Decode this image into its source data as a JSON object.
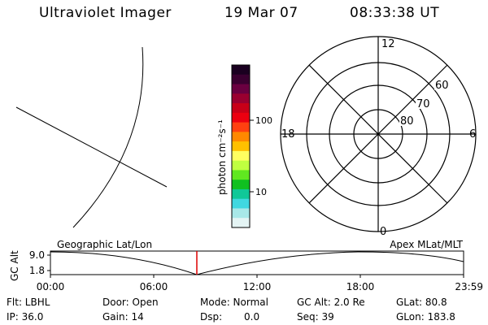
{
  "header": {
    "instrument": "Ultraviolet Imager",
    "date": "19 Mar 07",
    "time": "08:33:38 UT"
  },
  "colorbar": {
    "unit_label": "photon cm⁻²s⁻¹",
    "ticks": [
      "100",
      "10"
    ],
    "colors": [
      "#1a0020",
      "#3a0030",
      "#6a0040",
      "#9a0030",
      "#c80018",
      "#ec0010",
      "#ff4010",
      "#ff8800",
      "#ffc000",
      "#ffff60",
      "#c0ff40",
      "#60e820",
      "#10c020",
      "#10c898",
      "#40d8e0",
      "#a8e8e8",
      "#e4f4f4"
    ]
  },
  "polar_plot": {
    "mlt_labels": [
      "12",
      "18",
      "6",
      "0"
    ],
    "mlat_labels": [
      "60",
      "70",
      "80"
    ]
  },
  "timeline": {
    "y_axis_label": "GC Alt",
    "y_ticks": [
      "9.0",
      "1.8"
    ],
    "left_caption": "Geographic Lat/Lon",
    "right_caption": "Apex MLat/MLT",
    "time_ticks": [
      "00:00",
      "06:00",
      "12:00",
      "18:00",
      "23:59"
    ],
    "current_time_color": "#dd0000"
  },
  "status": {
    "flt": "Flt: LBHL",
    "ip": "IP: 36.0",
    "door": "Door: Open",
    "gain": "Gain: 14",
    "mode": "Mode: Normal",
    "dsp_label": "Dsp:",
    "dsp_value": "0.0",
    "gc_alt": "GC Alt: 2.0 Re",
    "seq": "Seq: 39",
    "glat": "GLat: 80.8",
    "glon": "GLon: 183.8"
  }
}
